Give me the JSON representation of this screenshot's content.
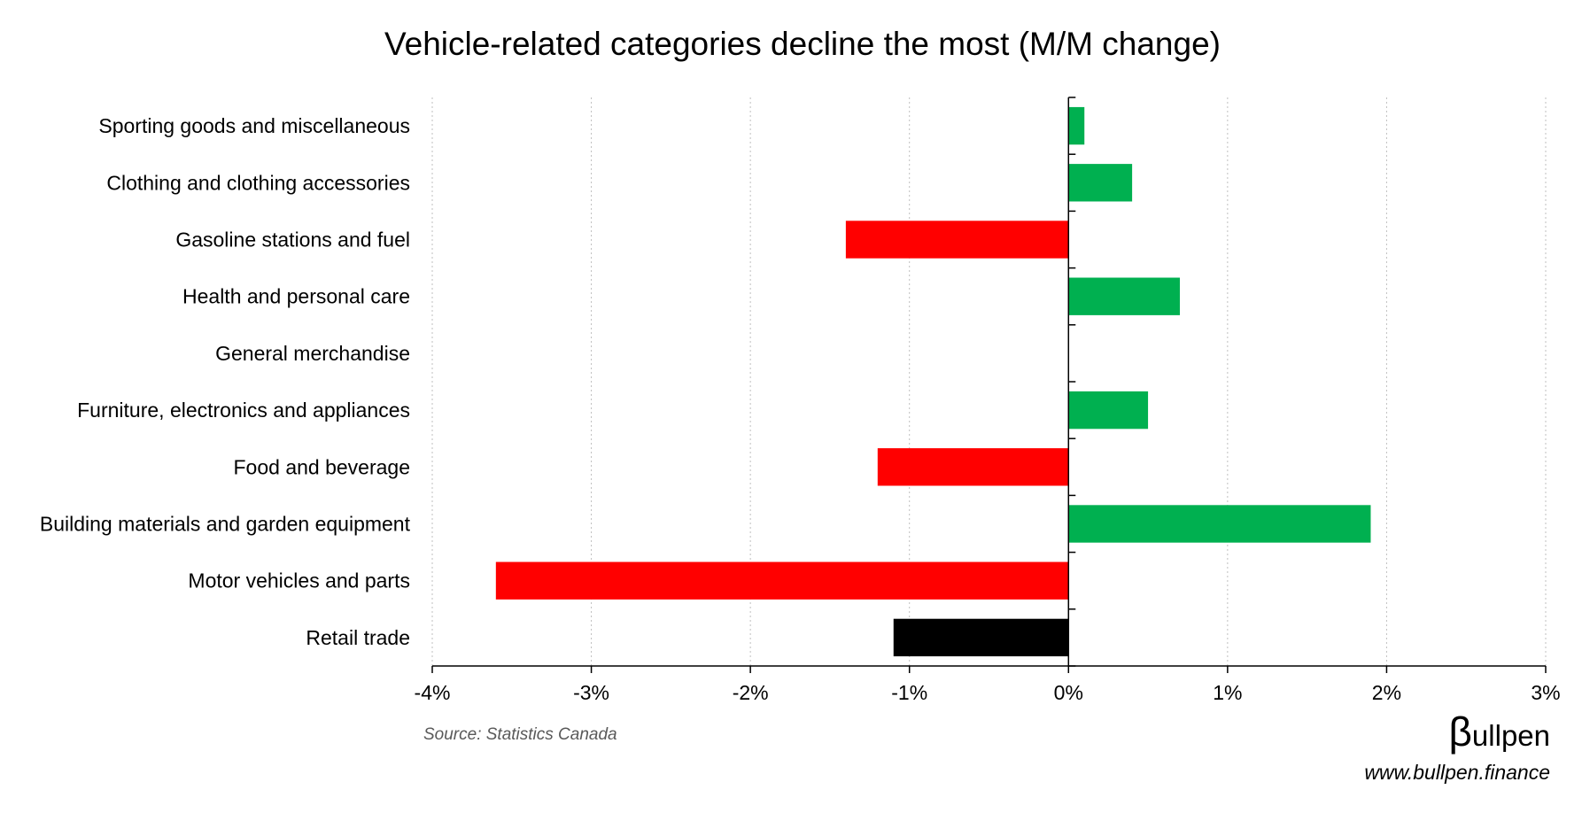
{
  "chart_data": {
    "type": "bar",
    "orientation": "horizontal",
    "title": "Vehicle-related categories decline the most (M/M change)",
    "categories": [
      "Sporting goods and miscellaneous",
      "Clothing and clothing accessories",
      "Gasoline stations and fuel",
      "Health and personal care",
      "General merchandise",
      "Furniture, electronics and appliances",
      "Food and beverage",
      "Building materials and garden equipment",
      "Motor vehicles and parts",
      "Retail trade"
    ],
    "values": [
      0.1,
      0.4,
      -1.4,
      0.7,
      0.0,
      0.5,
      -1.2,
      1.9,
      -3.6,
      -1.1
    ],
    "bar_colors": [
      "#00b050",
      "#00b050",
      "#ff0000",
      "#00b050",
      "#00b050",
      "#00b050",
      "#ff0000",
      "#00b050",
      "#ff0000",
      "#000000"
    ],
    "xlim": [
      -4,
      3
    ],
    "x_ticks": [
      -4,
      -3,
      -2,
      -1,
      0,
      1,
      2,
      3
    ],
    "x_tick_labels": [
      "-4%",
      "-3%",
      "-2%",
      "-1%",
      "0%",
      "1%",
      "2%",
      "3%"
    ],
    "xlabel": "",
    "ylabel": "",
    "grid": "vertical dotted",
    "legend": "none"
  },
  "source": "Source: Statistics Canada",
  "brand": {
    "beta": "β",
    "name": "ullpen",
    "url": "www.bullpen.finance"
  },
  "colors": {
    "positive": "#00b050",
    "negative": "#ff0000",
    "total": "#000000",
    "grid": "#bfbfbf"
  }
}
